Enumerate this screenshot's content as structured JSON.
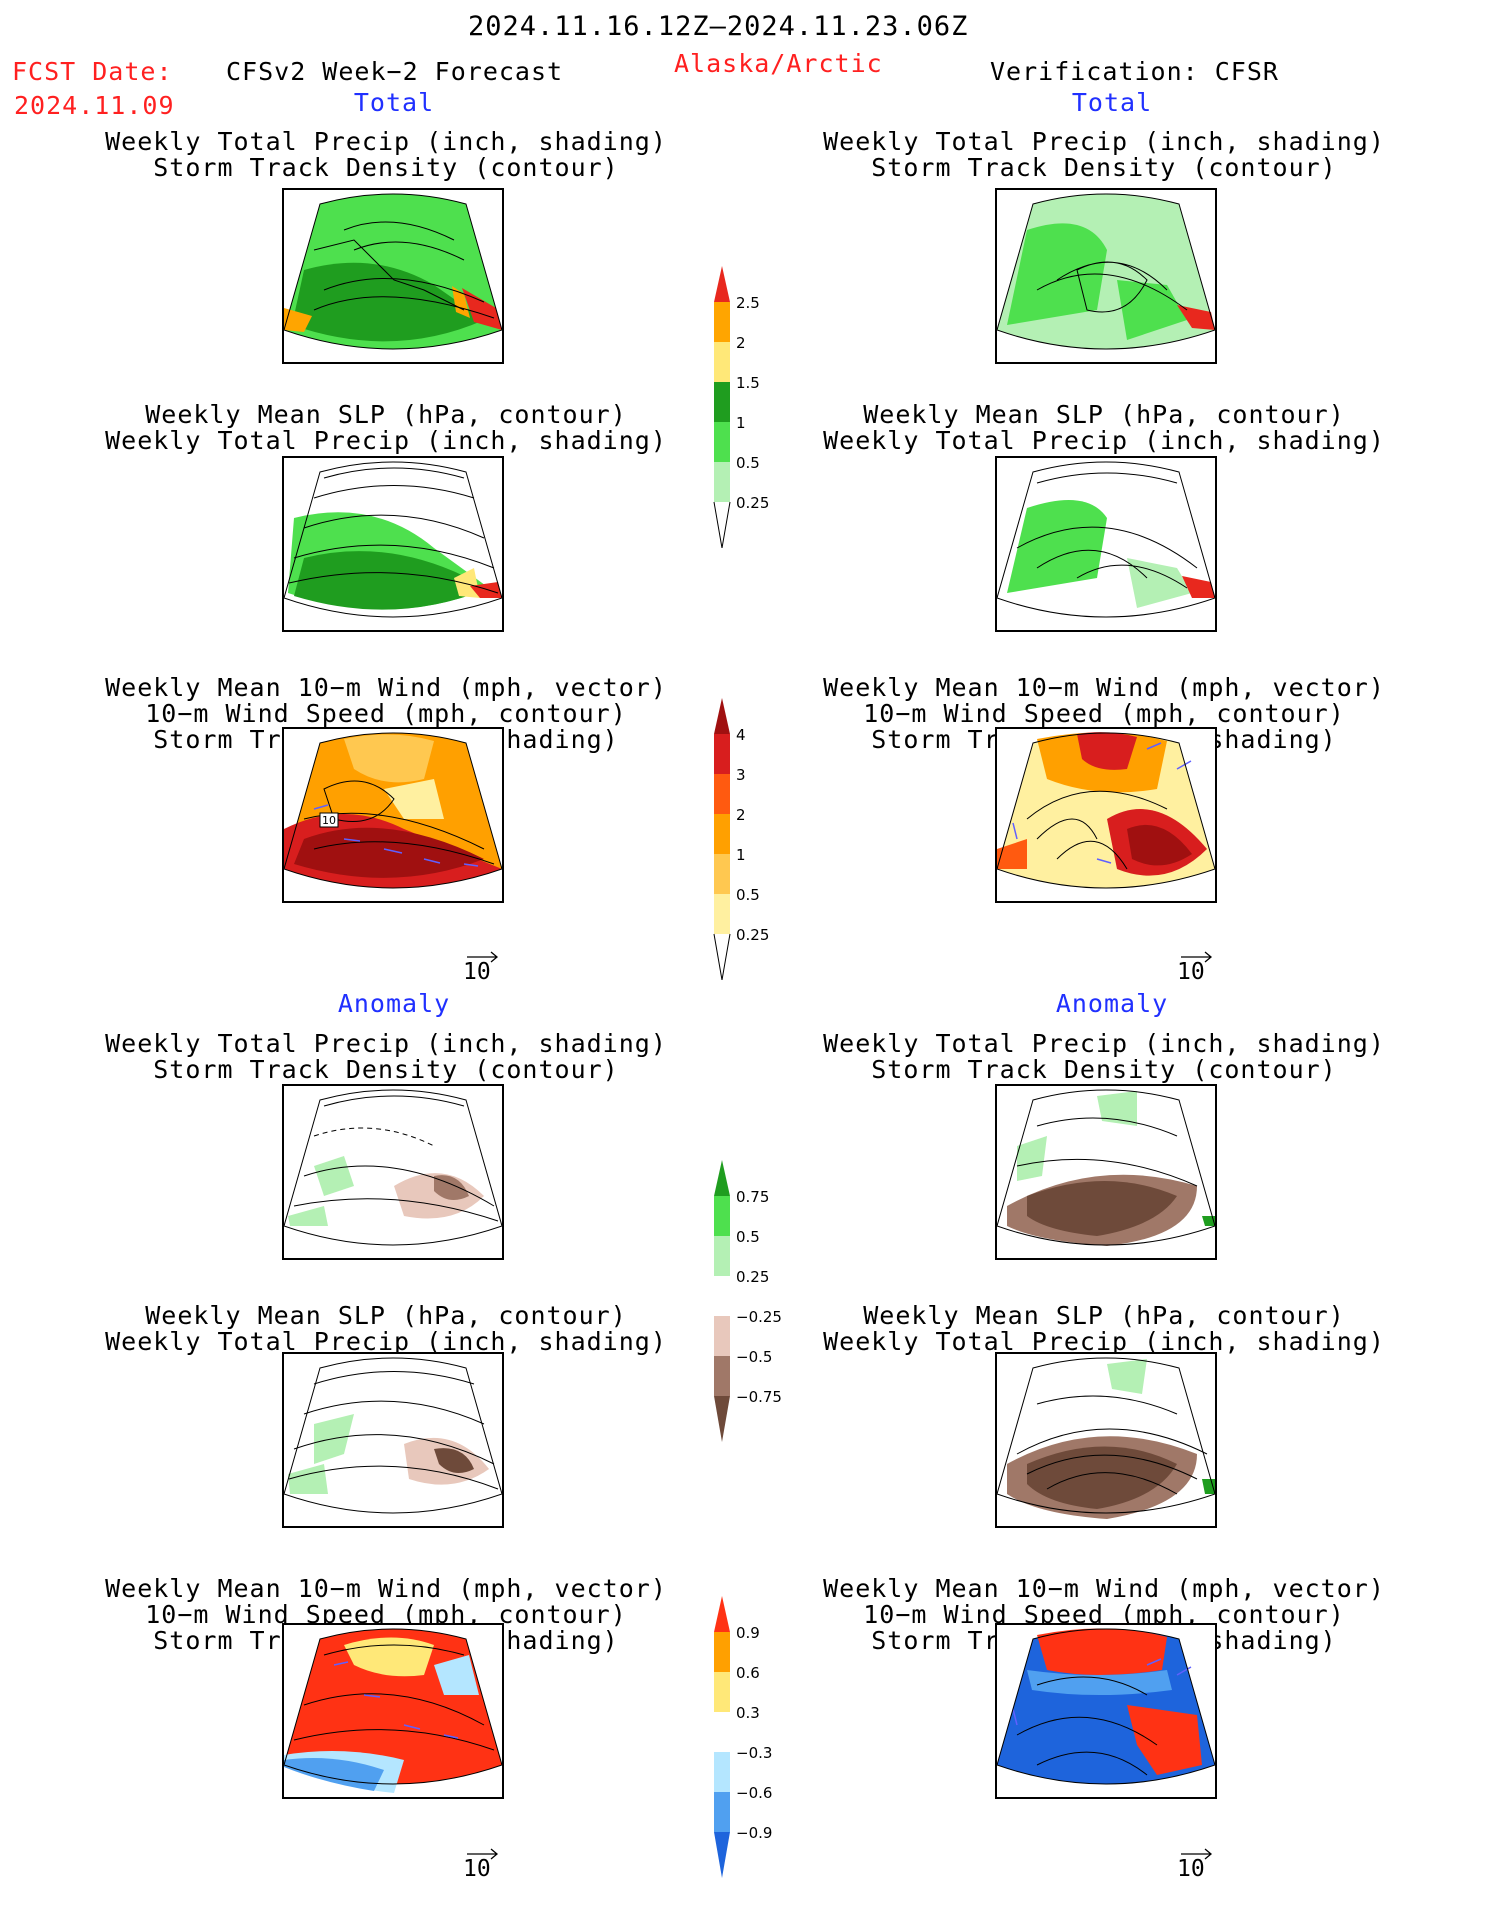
{
  "header": {
    "period": "2024.11.16.12Z–2024.11.23.06Z",
    "fcst_label": "FCST Date:",
    "fcst_date": "2024.11.09",
    "left_title": "CFSv2 Week−2 Forecast",
    "region": "Alaska/Arctic",
    "right_title": "Verification: CFSR"
  },
  "sections": {
    "total": "Total",
    "anomaly": "Anomaly"
  },
  "panel_titles": {
    "precip_storm": [
      "Weekly Total Precip (inch, shading)",
      "Storm Track Density (contour)"
    ],
    "slp_precip": [
      "Weekly Mean SLP (hPa, contour)",
      "Weekly Total Precip (inch, shading)"
    ],
    "wind_storm": [
      "Weekly Mean 10−m Wind (mph, vector)",
      "10−m Wind Speed (mph, contour)",
      "Storm Track Density (shading)"
    ]
  },
  "vector_ref": "10",
  "contour_label": "10",
  "colorbars": {
    "precip_total": {
      "labels": [
        "2.5",
        "2",
        "1.5",
        "1",
        "0.5",
        "0.25"
      ],
      "colors": [
        "#e8281e",
        "#ffa500",
        "#ffe878",
        "#1f9d1f",
        "#4ee04e",
        "#b4f0b4"
      ]
    },
    "storm_total": {
      "labels": [
        "4",
        "3",
        "2",
        "1",
        "0.5",
        "0.25"
      ],
      "colors": [
        "#a01010",
        "#d81e1e",
        "#ff5a10",
        "#ffa000",
        "#ffc850",
        "#fff0a0"
      ]
    },
    "precip_anom": {
      "labels": [
        "0.75",
        "0.5",
        "0.25",
        "−0.25",
        "−0.5",
        "−0.75"
      ],
      "colors": [
        "#1f9d1f",
        "#4ee04e",
        "#b4f0b4",
        "#ffffff",
        "#e8c8bc",
        "#a07868",
        "#6e4a3a"
      ]
    },
    "storm_anom": {
      "labels": [
        "0.9",
        "0.6",
        "0.3",
        "−0.3",
        "−0.6",
        "−0.9"
      ],
      "colors": [
        "#ff3214",
        "#ffa000",
        "#ffe878",
        "#ffffff",
        "#b4e6ff",
        "#50a0f0",
        "#1e64dc"
      ]
    }
  }
}
